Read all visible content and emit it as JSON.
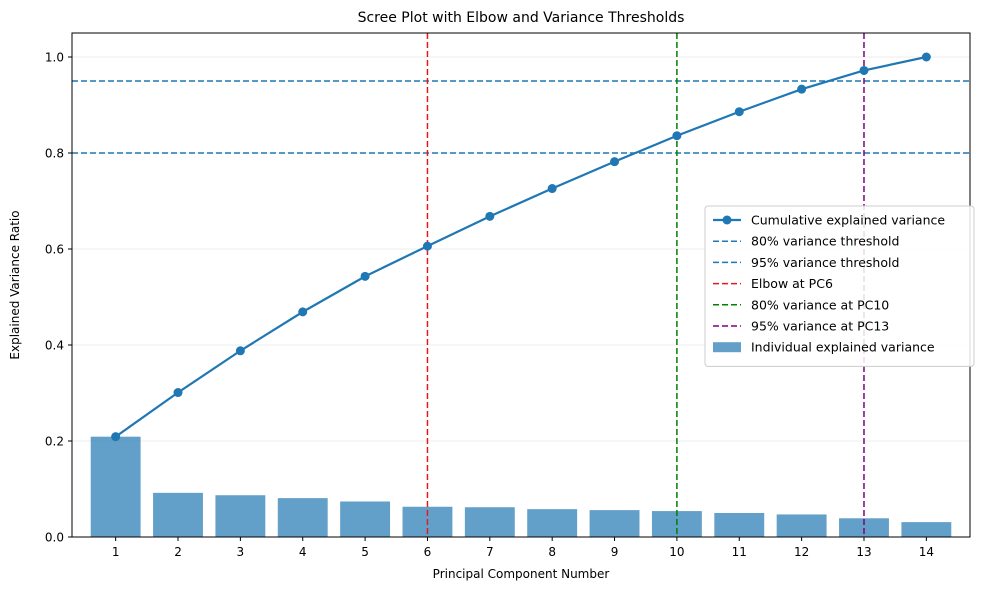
{
  "chart_data": {
    "type": "bar",
    "title": "Scree Plot with Elbow and Variance Thresholds",
    "xlabel": "Principal Component Number",
    "ylabel": "Explained Variance Ratio",
    "categories": [
      1,
      2,
      3,
      4,
      5,
      6,
      7,
      8,
      9,
      10,
      11,
      12,
      13,
      14
    ],
    "ylim": [
      0,
      1.05
    ],
    "yticks": [
      0.0,
      0.2,
      0.4,
      0.6,
      0.8,
      1.0
    ],
    "ytick_labels": [
      "0.0",
      "0.2",
      "0.4",
      "0.6",
      "0.8",
      "1.0"
    ],
    "grid": "y",
    "legend_placement": "center-right",
    "series": [
      {
        "name": "Individual explained variance",
        "kind": "bar",
        "color": "#1f77b4",
        "values": [
          0.209,
          0.092,
          0.087,
          0.081,
          0.074,
          0.063,
          0.062,
          0.058,
          0.056,
          0.054,
          0.05,
          0.047,
          0.039,
          0.031
        ]
      },
      {
        "name": "Cumulative explained variance",
        "kind": "line",
        "color": "#1f77b4",
        "values": [
          0.209,
          0.301,
          0.388,
          0.469,
          0.543,
          0.606,
          0.668,
          0.726,
          0.782,
          0.836,
          0.886,
          0.933,
          0.972,
          1.0
        ]
      }
    ],
    "hlines": [
      {
        "name": "80% variance threshold",
        "y": 0.8,
        "color": "#1f77b4"
      },
      {
        "name": "95% variance threshold",
        "y": 0.95,
        "color": "#1f77b4"
      }
    ],
    "vlines": [
      {
        "name": "Elbow at PC6",
        "x": 6,
        "color": "#e41a1c"
      },
      {
        "name": "80% variance at PC10",
        "x": 10,
        "color": "#008000"
      },
      {
        "name": "95% variance at PC13",
        "x": 13,
        "color": "#800080"
      }
    ],
    "legend_order": [
      "Cumulative explained variance",
      "80% variance threshold",
      "95% variance threshold",
      "Elbow at PC6",
      "80% variance at PC10",
      "95% variance at PC13",
      "Individual explained variance"
    ]
  }
}
